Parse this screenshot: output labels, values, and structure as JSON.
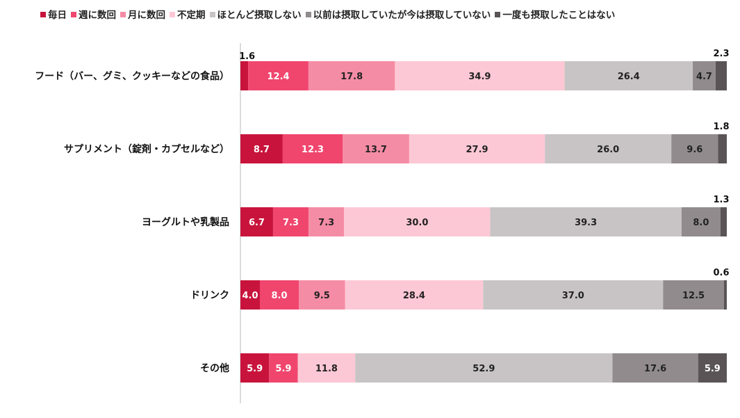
{
  "chart_data": {
    "type": "bar",
    "orientation": "horizontal",
    "stacked": true,
    "percent": true,
    "categories": [
      "フード（バー、グミ、クッキーなどの食品）",
      "サプリメント（錠剤・カプセルなど）",
      "ヨーグルトや乳製品",
      "ドリンク",
      "その他"
    ],
    "series": [
      {
        "name": "毎日",
        "color": "#c8143c",
        "values": [
          1.6,
          8.7,
          6.7,
          4.0,
          5.9
        ]
      },
      {
        "name": "週に数回",
        "color": "#f0466e",
        "values": [
          12.4,
          12.3,
          7.3,
          8.0,
          5.9
        ]
      },
      {
        "name": "月に数回",
        "color": "#f58ca5",
        "values": [
          17.8,
          13.7,
          7.3,
          9.5,
          0.0
        ]
      },
      {
        "name": "不定期",
        "color": "#fdc8d5",
        "values": [
          34.9,
          27.9,
          30.0,
          28.4,
          11.8
        ]
      },
      {
        "name": "ほとんど摂取しない",
        "color": "#c8c4c5",
        "values": [
          26.4,
          26.0,
          39.3,
          37.0,
          52.9
        ]
      },
      {
        "name": "以前は摂取していたが今は摂取していない",
        "color": "#918b8d",
        "values": [
          4.7,
          9.6,
          8.0,
          12.5,
          17.6
        ]
      },
      {
        "name": "一度も摂取したことはない",
        "color": "#5a5456",
        "values": [
          2.3,
          1.8,
          1.3,
          0.6,
          5.9
        ]
      }
    ],
    "label_text": [
      [
        "1.6",
        "12.4",
        "17.8",
        "34.9",
        "26.4",
        "4.7",
        "2.3"
      ],
      [
        "8.7",
        "12.3",
        "13.7",
        "27.9",
        "26.0",
        "9.6",
        "1.8"
      ],
      [
        "6.7",
        "7.3",
        "7.3",
        "30.0",
        "39.3",
        "8.0",
        "1.3"
      ],
      [
        "4.0",
        "8.0",
        "9.5",
        "28.4",
        "37.0",
        "12.5",
        "0.6"
      ],
      [
        "5.9",
        "5.9",
        "-",
        "11.8",
        "52.9",
        "17.6",
        "5.9"
      ]
    ],
    "xlim": [
      0,
      100
    ],
    "legend_position": "top",
    "grid": false
  }
}
